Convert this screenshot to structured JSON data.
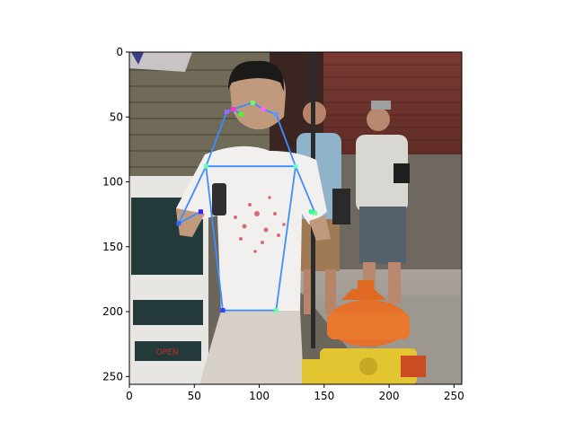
{
  "chart_data": {
    "type": "scatter",
    "title": "",
    "xlabel": "",
    "ylabel": "",
    "xlim": [
      0,
      256
    ],
    "ylim": [
      256,
      0
    ],
    "y_inverted": true,
    "grid": false,
    "legend": "none",
    "xticks": [
      0,
      50,
      100,
      150,
      200,
      250
    ],
    "yticks": [
      0,
      50,
      100,
      150,
      200,
      250
    ],
    "background_image": "photo of a man in a white t-shirt holding a phone next to an orange and yellow fire hydrant, with a brewery sign and two people in the background",
    "skeleton": {
      "color": "#3f8cff",
      "keypoints": [
        {
          "name": "head-top",
          "x": 95,
          "y": 39,
          "color": "#66ff66"
        },
        {
          "name": "nose",
          "x": 86,
          "y": 48,
          "color": "#44ff22"
        },
        {
          "name": "left-eye",
          "x": 80,
          "y": 44,
          "color": "#ff33cc"
        },
        {
          "name": "right-eye",
          "x": 103,
          "y": 44,
          "color": "#ff66ff"
        },
        {
          "name": "left-ear",
          "x": 75,
          "y": 46,
          "color": "#9a66ff"
        },
        {
          "name": "right-ear",
          "x": 113,
          "y": 48,
          "color": "#6699ff"
        },
        {
          "name": "left-shoulder",
          "x": 59,
          "y": 88,
          "color": "#66ffcc"
        },
        {
          "name": "right-shoulder",
          "x": 128,
          "y": 88,
          "color": "#66ffcc"
        },
        {
          "name": "left-elbow",
          "x": 38,
          "y": 132,
          "color": "#3366ff"
        },
        {
          "name": "right-elbow",
          "x": 143,
          "y": 124,
          "color": "#66ff99"
        },
        {
          "name": "left-wrist",
          "x": 55,
          "y": 123,
          "color": "#3322ff"
        },
        {
          "name": "right-wrist",
          "x": 140,
          "y": 123,
          "color": "#33ff88"
        },
        {
          "name": "left-hip",
          "x": 72,
          "y": 199,
          "color": "#3344ff"
        },
        {
          "name": "right-hip",
          "x": 113,
          "y": 199,
          "color": "#66ffaa"
        }
      ],
      "edges": [
        [
          "left-ear",
          "left-eye"
        ],
        [
          "left-eye",
          "head-top"
        ],
        [
          "head-top",
          "right-eye"
        ],
        [
          "right-eye",
          "right-ear"
        ],
        [
          "nose",
          "left-eye"
        ],
        [
          "left-ear",
          "left-shoulder"
        ],
        [
          "right-ear",
          "right-shoulder"
        ],
        [
          "left-shoulder",
          "right-shoulder"
        ],
        [
          "left-shoulder",
          "left-elbow"
        ],
        [
          "left-elbow",
          "left-wrist"
        ],
        [
          "right-shoulder",
          "right-elbow"
        ],
        [
          "left-shoulder",
          "left-hip"
        ],
        [
          "right-shoulder",
          "right-hip"
        ],
        [
          "left-hip",
          "right-hip"
        ]
      ]
    }
  }
}
